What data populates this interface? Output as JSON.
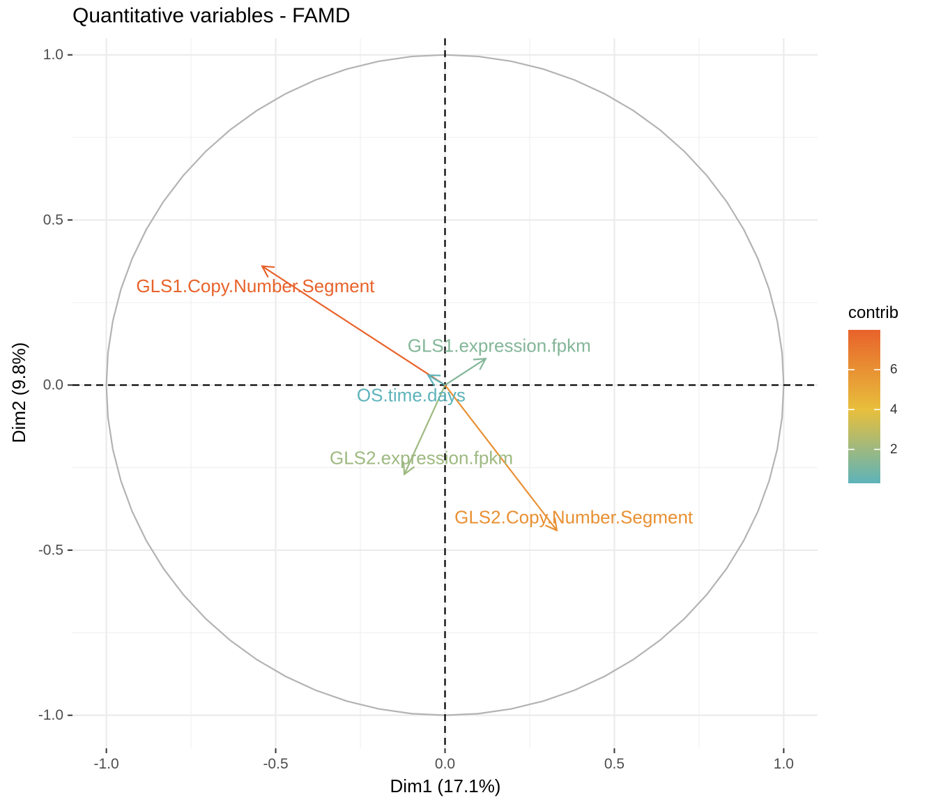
{
  "chart_data": {
    "type": "scatter",
    "subtype": "correlation-circle",
    "title": "Quantitative variables - FAMD",
    "xlabel": "Dim1 (17.1%)",
    "ylabel": "Dim2 (9.8%)",
    "xlim": [
      -1.1,
      1.1
    ],
    "ylim": [
      -1.1,
      1.05
    ],
    "xticks": [
      -1.0,
      -0.5,
      0.0,
      0.5,
      1.0
    ],
    "xtick_labels": [
      "-1.0",
      "-0.5",
      "0.0",
      "0.5",
      "1.0"
    ],
    "yticks": [
      -1.0,
      -0.5,
      0.0,
      0.5,
      1.0
    ],
    "ytick_labels": [
      "-1.0",
      "-0.5",
      "0.0",
      "0.5",
      "1.0"
    ],
    "grid": true,
    "unit_circle": true,
    "reference_lines": {
      "x": 0,
      "y": 0,
      "style": "dashed"
    },
    "variables": [
      {
        "name": "GLS1.Copy.Number.Segment",
        "x": -0.54,
        "y": 0.36,
        "contrib": 8.0,
        "label_x": -0.56,
        "label_y": 0.3
      },
      {
        "name": "GLS1.expression.fpkm",
        "x": 0.12,
        "y": 0.08,
        "contrib": 1.3,
        "label_x": 0.16,
        "label_y": 0.12
      },
      {
        "name": "OS.time.days",
        "x": -0.05,
        "y": 0.03,
        "contrib": 0.3,
        "label_x": -0.1,
        "label_y": -0.03
      },
      {
        "name": "GLS2.expression.fpkm",
        "x": -0.12,
        "y": -0.27,
        "contrib": 2.0,
        "label_x": -0.07,
        "label_y": -0.22
      },
      {
        "name": "GLS2.Copy.Number.Segment",
        "x": 0.33,
        "y": -0.44,
        "contrib": 6.0,
        "label_x": 0.38,
        "label_y": -0.4
      }
    ],
    "legend": {
      "title": "contrib",
      "position": "right",
      "type": "gradient",
      "range": [
        0.3,
        8.0
      ],
      "ticks": [
        2,
        4,
        6
      ],
      "tick_labels": [
        "2",
        "4",
        "6"
      ],
      "colors": [
        "#5db3ba",
        "#e8bf3c",
        "#e8622b"
      ]
    }
  }
}
